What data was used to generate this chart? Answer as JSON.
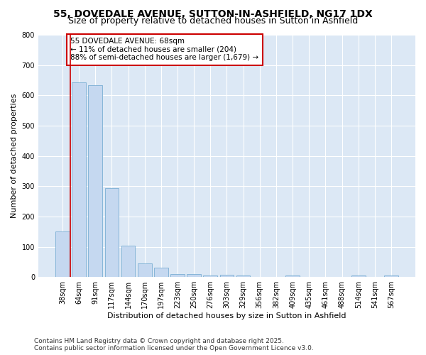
{
  "title1": "55, DOVEDALE AVENUE, SUTTON-IN-ASHFIELD, NG17 1DX",
  "title2": "Size of property relative to detached houses in Sutton in Ashfield",
  "xlabel": "Distribution of detached houses by size in Sutton in Ashfield",
  "ylabel": "Number of detached properties",
  "footer1": "Contains HM Land Registry data © Crown copyright and database right 2025.",
  "footer2": "Contains public sector information licensed under the Open Government Licence v3.0.",
  "categories": [
    "38sqm",
    "64sqm",
    "91sqm",
    "117sqm",
    "144sqm",
    "170sqm",
    "197sqm",
    "223sqm",
    "250sqm",
    "276sqm",
    "303sqm",
    "329sqm",
    "356sqm",
    "382sqm",
    "409sqm",
    "435sqm",
    "461sqm",
    "488sqm",
    "514sqm",
    "541sqm",
    "567sqm"
  ],
  "values": [
    150,
    643,
    633,
    293,
    103,
    45,
    30,
    10,
    10,
    5,
    8,
    5,
    0,
    0,
    5,
    0,
    0,
    0,
    5,
    0,
    5
  ],
  "bar_color": "#c5d8f0",
  "bar_edge_color": "#7bafd4",
  "annotation_text": "55 DOVEDALE AVENUE: 68sqm\n← 11% of detached houses are smaller (204)\n88% of semi-detached houses are larger (1,679) →",
  "annotation_box_facecolor": "#ffffff",
  "annotation_box_edgecolor": "#cc0000",
  "vline_color": "#cc0000",
  "vline_x": 0.5,
  "ylim": [
    0,
    800
  ],
  "yticks": [
    0,
    100,
    200,
    300,
    400,
    500,
    600,
    700,
    800
  ],
  "fig_facecolor": "#ffffff",
  "plot_facecolor": "#dce8f5",
  "grid_color": "#ffffff",
  "title1_fontsize": 10,
  "title2_fontsize": 9,
  "axis_label_fontsize": 8,
  "tick_fontsize": 7,
  "annotation_fontsize": 7.5,
  "footer_fontsize": 6.5
}
